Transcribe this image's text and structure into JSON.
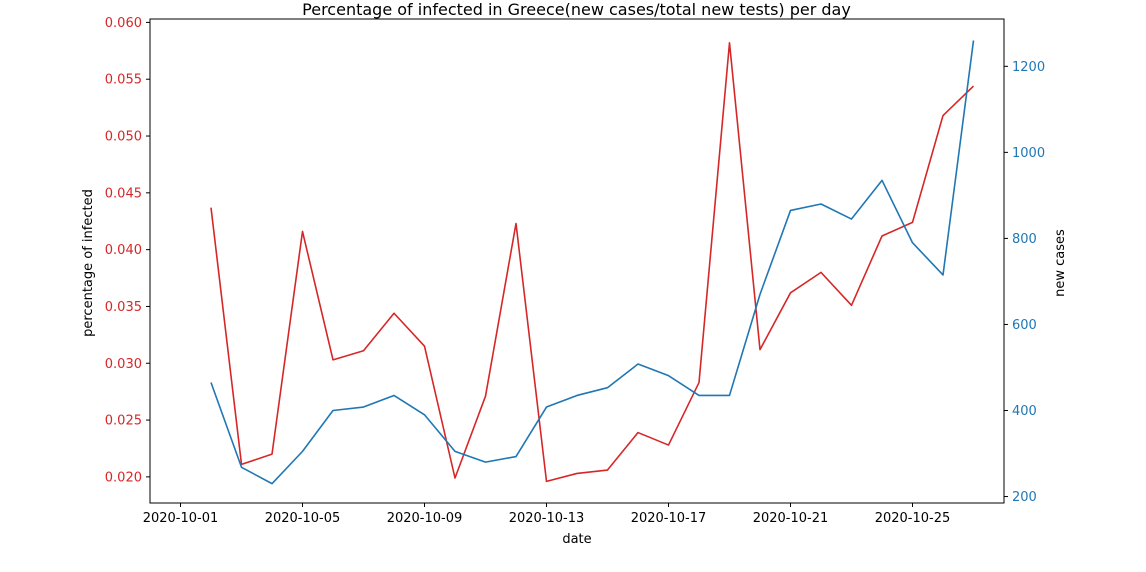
{
  "chart_data": {
    "type": "line",
    "title": "Percentage of infected in Greece(new cases/total new tests) per day",
    "xlabel": "date",
    "ylabel_left": "percentage of infected",
    "ylabel_right": "new cases",
    "x_tick_labels": [
      "2020-10-01",
      "2020-10-05",
      "2020-10-09",
      "2020-10-13",
      "2020-10-17",
      "2020-10-21",
      "2020-10-25"
    ],
    "y_left_ticks": [
      "0.020",
      "0.025",
      "0.030",
      "0.035",
      "0.040",
      "0.045",
      "0.050",
      "0.055",
      "0.060"
    ],
    "y_right_ticks": [
      "200",
      "400",
      "600",
      "800",
      "1000",
      "1200"
    ],
    "xlim": [
      "2020-09-30",
      "2020-10-28"
    ],
    "ylim_left": [
      0.0177,
      0.0603
    ],
    "ylim_right": [
      185,
      1310
    ],
    "grid": false,
    "colors": {
      "left_series": "#d62728",
      "right_series": "#1f77b4"
    },
    "x": [
      "2020-10-02",
      "2020-10-03",
      "2020-10-04",
      "2020-10-05",
      "2020-10-06",
      "2020-10-07",
      "2020-10-08",
      "2020-10-09",
      "2020-10-10",
      "2020-10-11",
      "2020-10-12",
      "2020-10-13",
      "2020-10-14",
      "2020-10-15",
      "2020-10-16",
      "2020-10-17",
      "2020-10-18",
      "2020-10-19",
      "2020-10-20",
      "2020-10-21",
      "2020-10-22",
      "2020-10-23",
      "2020-10-24",
      "2020-10-25",
      "2020-10-26",
      "2020-10-27"
    ],
    "series": [
      {
        "axis": "left",
        "values": [
          0.0437,
          0.0211,
          0.022,
          0.0416,
          0.0303,
          0.0311,
          0.0344,
          0.0315,
          0.0199,
          0.0271,
          0.0423,
          0.0196,
          0.0203,
          0.0206,
          0.0239,
          0.0228,
          0.0283,
          0.0582,
          0.0312,
          0.0362,
          0.038,
          0.0351,
          0.0412,
          0.0424,
          0.0518,
          0.0544
        ]
      },
      {
        "axis": "right",
        "values": [
          465,
          268,
          230,
          305,
          400,
          408,
          435,
          390,
          305,
          280,
          293,
          408,
          435,
          453,
          508,
          481,
          435,
          435,
          670,
          865,
          880,
          845,
          935,
          790,
          715,
          1260
        ]
      }
    ]
  }
}
